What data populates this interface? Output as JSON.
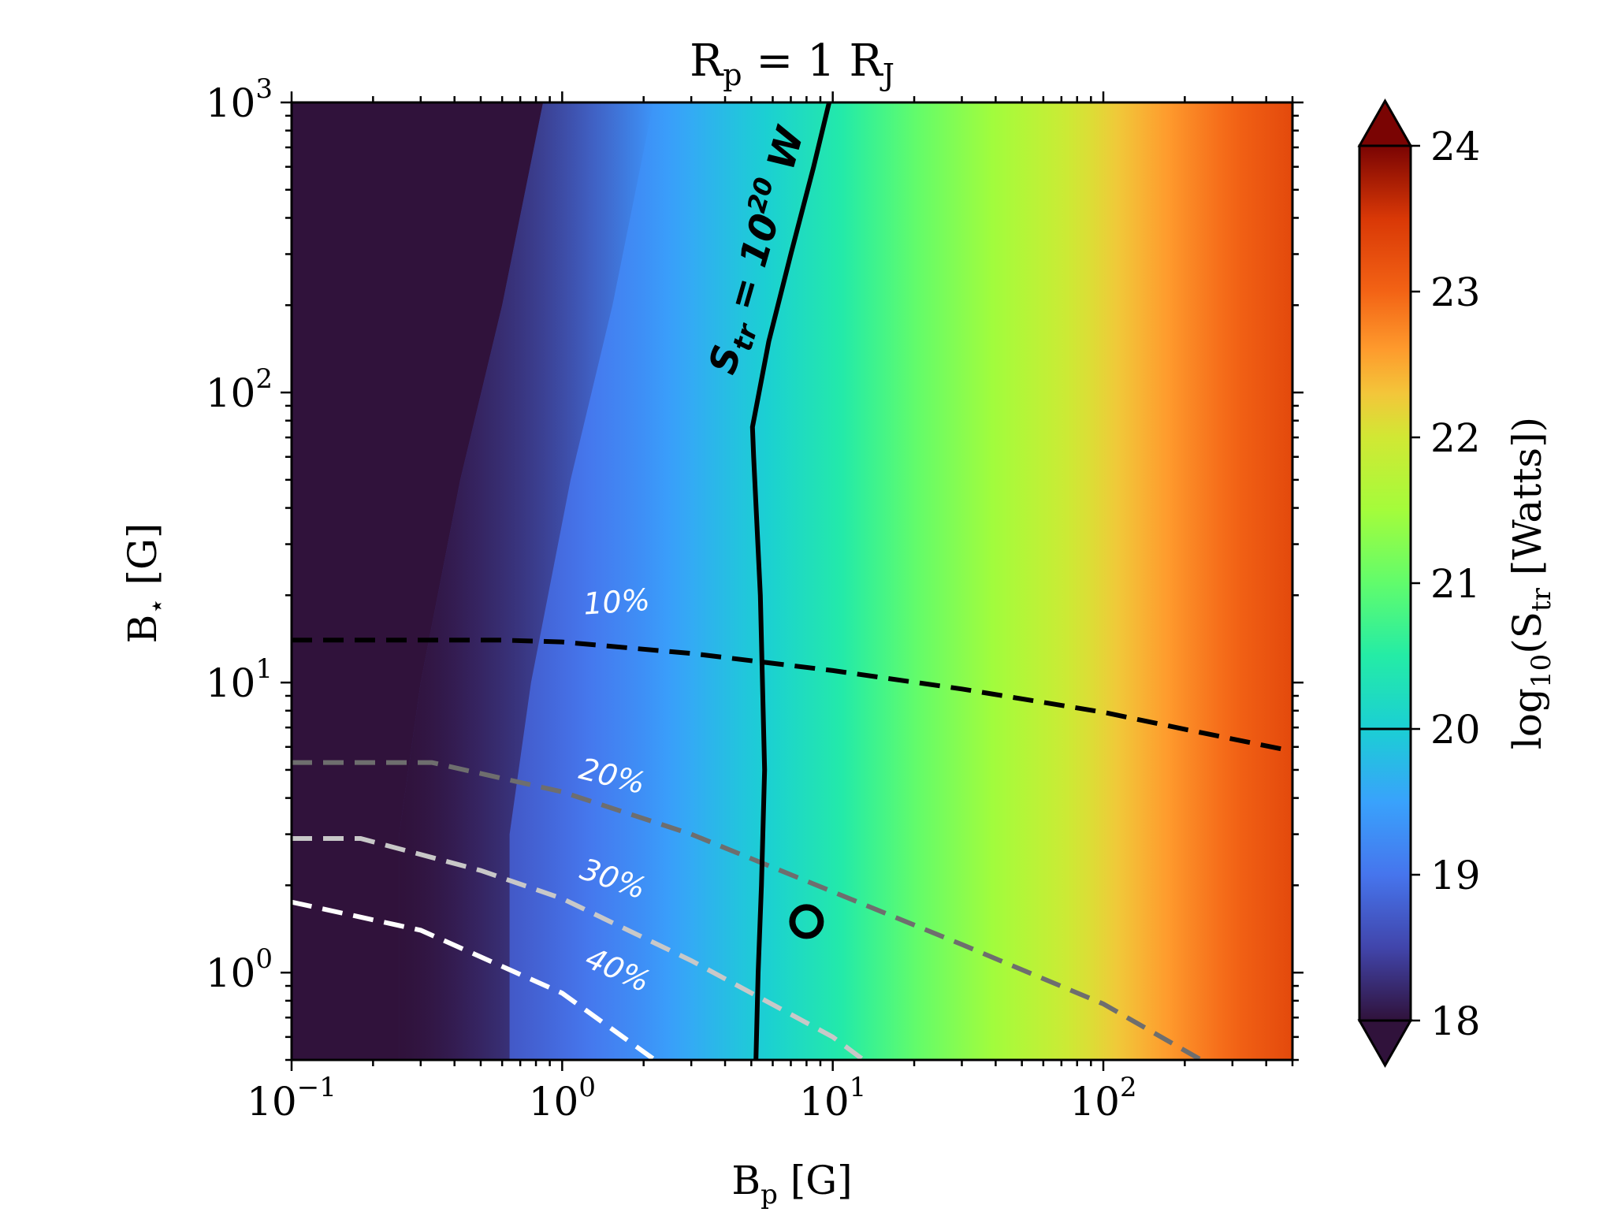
{
  "chart_data": {
    "type": "heatmap",
    "title": "R_p = 1 R_J",
    "xlabel": "B_p [G]",
    "ylabel": "B_⋆ [G]",
    "xscale": "log",
    "yscale": "log",
    "xlim": [
      0.1,
      500
    ],
    "ylim": [
      0.5,
      1000
    ],
    "x_ticks": [
      {
        "value": 0.1,
        "base": "10",
        "exp": "−1"
      },
      {
        "value": 1,
        "base": "10",
        "exp": "0"
      },
      {
        "value": 10,
        "base": "10",
        "exp": "1"
      },
      {
        "value": 100,
        "base": "10",
        "exp": "2"
      }
    ],
    "y_ticks": [
      {
        "value": 1,
        "base": "10",
        "exp": "0"
      },
      {
        "value": 10,
        "base": "10",
        "exp": "1"
      },
      {
        "value": 100,
        "base": "10",
        "exp": "2"
      },
      {
        "value": 1000,
        "base": "10",
        "exp": "3"
      }
    ],
    "colorbar": {
      "label": "log10(S_tr [Watts])",
      "range": [
        18,
        24
      ],
      "ticks": [
        "18",
        "19",
        "20",
        "21",
        "22",
        "23",
        "24"
      ],
      "colormap": "turbo",
      "extend": "both",
      "marked_level": 20
    },
    "field_description": "log10(S_tr) increases with B_p; about 18.9 at B_p=1 G, 20 near B_p=5.5 G, 21 near B_p=20 G, 23 near B_p=300 G",
    "contour_Str_1e20": {
      "label": "S_tr = 10^20 W",
      "x": [
        5.2,
        5.3,
        5.45,
        5.6,
        5.4,
        5.1,
        5.05,
        5.8,
        7.0,
        8.5,
        9.7
      ],
      "y": [
        0.5,
        1.0,
        2.0,
        5.0,
        20.0,
        60.0,
        76.0,
        150.0,
        300.0,
        600.0,
        1000.0
      ]
    },
    "dashed_contours": [
      {
        "label": "10%",
        "color": "#000000",
        "x": [
          0.1,
          0.3,
          0.6,
          1.0,
          3.0,
          10.0,
          30.0,
          100.0,
          200.0,
          500.0
        ],
        "y": [
          14,
          14,
          14,
          13.8,
          12.6,
          11.0,
          9.5,
          7.9,
          6.9,
          5.8
        ]
      },
      {
        "label": "20%",
        "color": "#6e6e6e",
        "x": [
          0.1,
          0.33,
          1.0,
          3.0,
          10.0,
          30.0,
          100.0,
          230.0
        ],
        "y": [
          5.3,
          5.3,
          4.2,
          3.0,
          1.9,
          1.25,
          0.78,
          0.5
        ]
      },
      {
        "label": "30%",
        "color": "#c8c8c8",
        "x": [
          0.1,
          0.18,
          0.5,
          1.0,
          3.0,
          10.0,
          13.0
        ],
        "y": [
          2.9,
          2.9,
          2.25,
          1.8,
          1.1,
          0.6,
          0.5
        ]
      },
      {
        "label": "40%",
        "color": "#ffffff",
        "x": [
          0.1,
          0.3,
          1.0,
          2.2
        ],
        "y": [
          1.75,
          1.4,
          0.85,
          0.5
        ]
      }
    ],
    "marker": {
      "x": 8.0,
      "y": 1.5,
      "shape": "open-circle",
      "color": "#000000"
    }
  }
}
